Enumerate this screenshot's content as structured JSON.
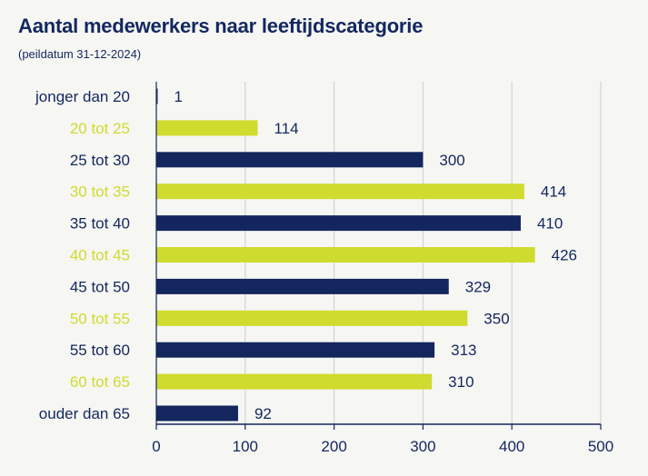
{
  "title": "Aantal medewerkers naar leeftijdscategorie",
  "subtitle": "(peildatum 31-12-2024)",
  "colors": {
    "navy": "#13275e",
    "lime": "#cfdb2e",
    "grid": "#c9cdd6",
    "background": "#f6f6f3"
  },
  "chart_data": {
    "type": "bar",
    "orientation": "horizontal",
    "title": "Aantal medewerkers naar leeftijdscategorie",
    "subtitle": "(peildatum 31-12-2024)",
    "categories": [
      "jonger dan 20",
      "20 tot 25",
      "25 tot 30",
      "30 tot 35",
      "35 tot 40",
      "40 tot 45",
      "45 tot 50",
      "50 tot 55",
      "55 tot 60",
      "60 tot 65",
      "ouder dan 65"
    ],
    "values": [
      1,
      114,
      300,
      414,
      410,
      426,
      329,
      350,
      313,
      310,
      92
    ],
    "bar_colors": [
      "navy",
      "lime",
      "navy",
      "lime",
      "navy",
      "lime",
      "navy",
      "lime",
      "navy",
      "lime",
      "navy"
    ],
    "xlim": [
      0,
      500
    ],
    "xticks": [
      0,
      100,
      200,
      300,
      400,
      500
    ],
    "grid": true,
    "legend": "none"
  }
}
